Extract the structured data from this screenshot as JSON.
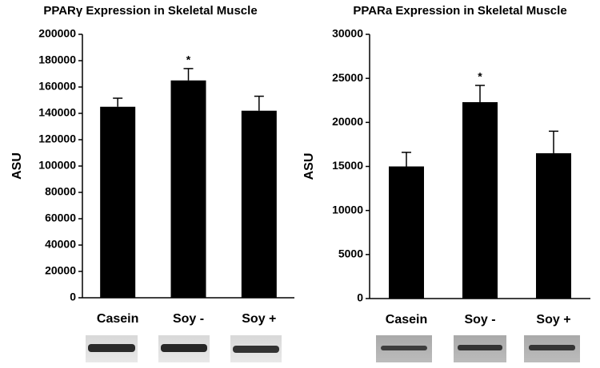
{
  "chart_data": [
    {
      "type": "bar",
      "title": "PPARγ Expression in Skeletal Muscle",
      "y_label": "ASU",
      "categories": [
        "Casein",
        "Soy -",
        "Soy +"
      ],
      "values": [
        145000,
        165000,
        142000
      ],
      "errors": [
        6500,
        9000,
        11000
      ],
      "color": "#000000",
      "ylim": [
        0,
        200000
      ],
      "yticks": [
        0,
        20000,
        40000,
        60000,
        80000,
        100000,
        120000,
        140000,
        160000,
        180000,
        200000
      ],
      "annotations": [
        {
          "label": "*",
          "category": "Soy -"
        }
      ]
    },
    {
      "type": "bar",
      "title": "PPARa Expression in Skeletal Muscle",
      "y_label": "ASU",
      "categories": [
        "Casein",
        "Soy -",
        "Soy +"
      ],
      "values": [
        15000,
        22300,
        16500
      ],
      "errors": [
        1600,
        1900,
        2500
      ],
      "color": "#000000",
      "ylim": [
        0,
        30000
      ],
      "yticks": [
        0,
        5000,
        10000,
        15000,
        20000,
        25000,
        30000
      ],
      "annotations": [
        {
          "label": "*",
          "category": "Soy -"
        }
      ]
    }
  ]
}
